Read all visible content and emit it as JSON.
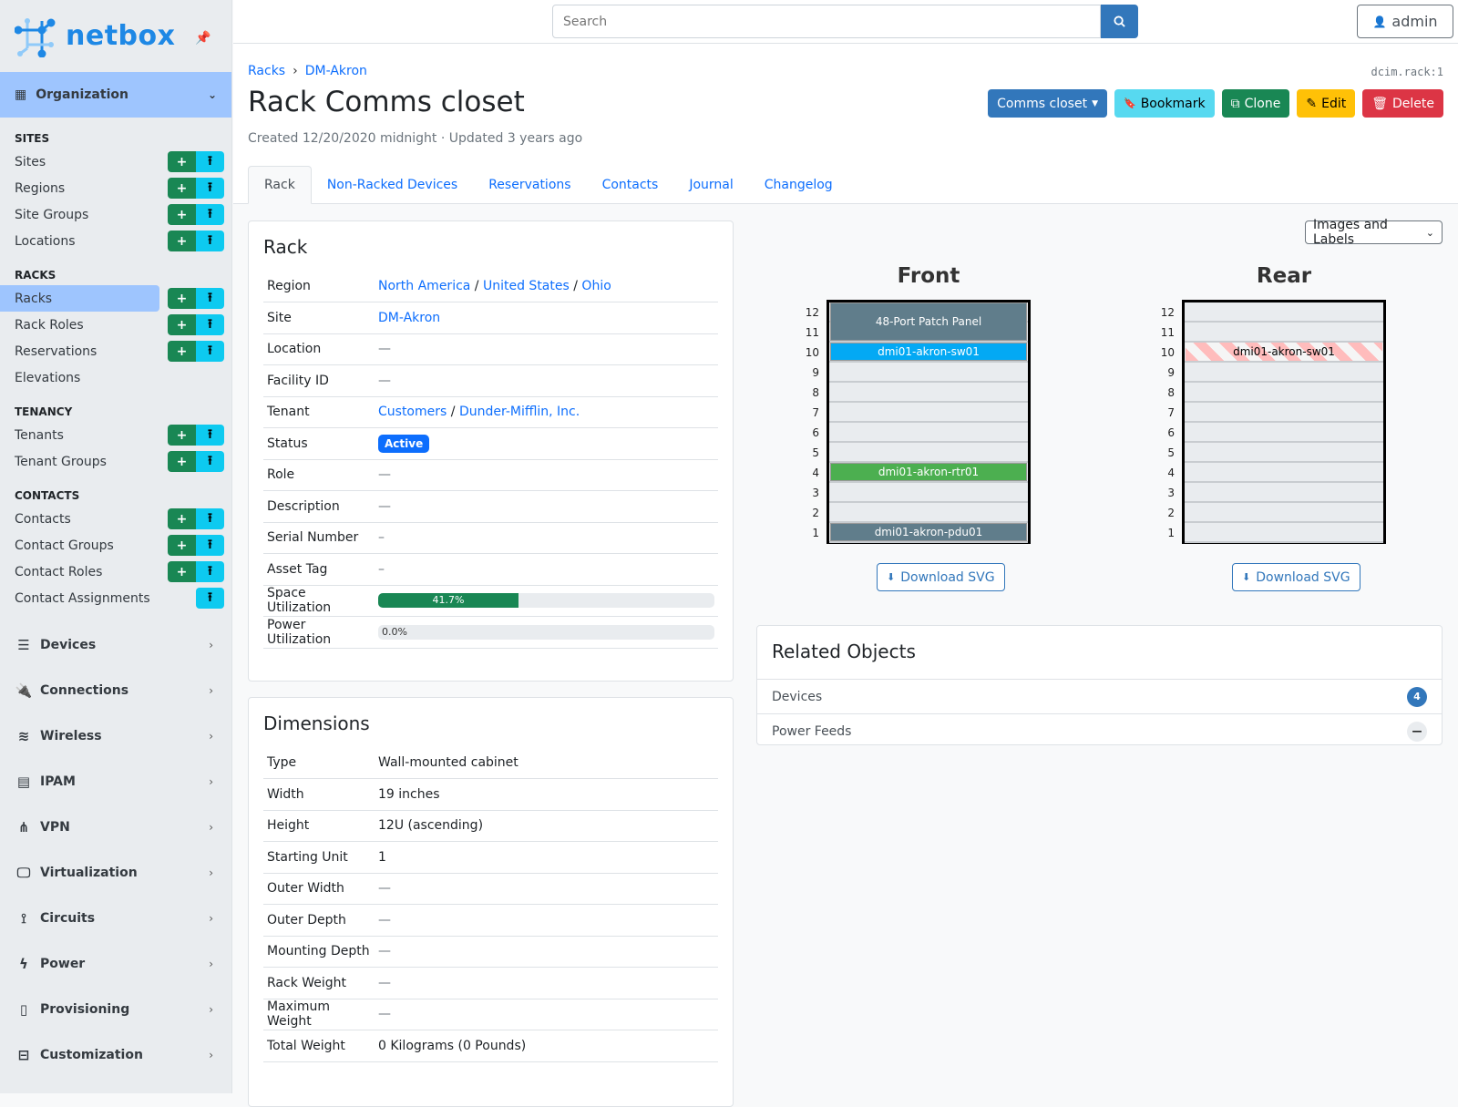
{
  "brand": {
    "name": "netbox",
    "accent": "#1e88e5"
  },
  "sidebar": {
    "group": "Organization",
    "sections": [
      {
        "title": "SITES",
        "items": [
          {
            "label": "Sites",
            "add": true,
            "import": true
          },
          {
            "label": "Regions",
            "add": true,
            "import": true
          },
          {
            "label": "Site Groups",
            "add": true,
            "import": true
          },
          {
            "label": "Locations",
            "add": true,
            "import": true
          }
        ]
      },
      {
        "title": "RACKS",
        "items": [
          {
            "label": "Racks",
            "add": true,
            "import": true,
            "active": true
          },
          {
            "label": "Rack Roles",
            "add": true,
            "import": true
          },
          {
            "label": "Reservations",
            "add": true,
            "import": true
          },
          {
            "label": "Elevations",
            "add": false,
            "import": false
          }
        ]
      },
      {
        "title": "TENANCY",
        "items": [
          {
            "label": "Tenants",
            "add": true,
            "import": true
          },
          {
            "label": "Tenant Groups",
            "add": true,
            "import": true
          }
        ]
      },
      {
        "title": "CONTACTS",
        "items": [
          {
            "label": "Contacts",
            "add": true,
            "import": true
          },
          {
            "label": "Contact Groups",
            "add": true,
            "import": true
          },
          {
            "label": "Contact Roles",
            "add": true,
            "import": true
          },
          {
            "label": "Contact Assignments",
            "add": false,
            "import": true
          }
        ]
      }
    ],
    "menus": [
      {
        "label": "Devices",
        "icon": "server-icon"
      },
      {
        "label": "Connections",
        "icon": "plug-icon"
      },
      {
        "label": "Wireless",
        "icon": "wifi-icon"
      },
      {
        "label": "IPAM",
        "icon": "ip-icon"
      },
      {
        "label": "VPN",
        "icon": "network-icon"
      },
      {
        "label": "Virtualization",
        "icon": "monitor-icon"
      },
      {
        "label": "Circuits",
        "icon": "circuit-icon"
      },
      {
        "label": "Power",
        "icon": "bolt-icon"
      },
      {
        "label": "Provisioning",
        "icon": "file-icon"
      },
      {
        "label": "Customization",
        "icon": "toolbox-icon"
      }
    ]
  },
  "topbar": {
    "search_placeholder": "Search",
    "user": "admin"
  },
  "header": {
    "breadcrumb": [
      "Racks",
      "DM-Akron"
    ],
    "object_id": "dcim.rack:1",
    "title": "Rack Comms closet",
    "meta": "Created 12/20/2020 midnight · Updated 3 years ago",
    "actions": {
      "rack_select": "Comms closet",
      "bookmark": "Bookmark",
      "clone": "Clone",
      "edit": "Edit",
      "delete": "Delete"
    },
    "tabs": [
      "Rack",
      "Non-Racked Devices",
      "Reservations",
      "Contacts",
      "Journal",
      "Changelog"
    ]
  },
  "rack_card": {
    "title": "Rack",
    "region": [
      "North America",
      "United States",
      "Ohio"
    ],
    "rows": [
      {
        "label": "Region"
      },
      {
        "label": "Site",
        "value": "DM-Akron",
        "link": true
      },
      {
        "label": "Location",
        "value": "—"
      },
      {
        "label": "Facility ID",
        "value": "—"
      },
      {
        "label": "Tenant"
      },
      {
        "label": "Status",
        "value": "Active"
      },
      {
        "label": "Role",
        "value": "—"
      },
      {
        "label": "Description",
        "value": "—"
      },
      {
        "label": "Serial Number",
        "value": "–"
      },
      {
        "label": "Asset Tag",
        "value": "–"
      },
      {
        "label": "Space Utilization",
        "value": "41.7%",
        "percent": 41.7
      },
      {
        "label": "Power Utilization",
        "value": "0.0%",
        "percent": 0
      }
    ],
    "tenant": [
      "Customers",
      "Dunder-Mifflin, Inc."
    ]
  },
  "dimensions": {
    "title": "Dimensions",
    "rows": [
      {
        "label": "Type",
        "value": "Wall-mounted cabinet"
      },
      {
        "label": "Width",
        "value": "19 inches"
      },
      {
        "label": "Height",
        "value": "12U (ascending)"
      },
      {
        "label": "Starting Unit",
        "value": "1"
      },
      {
        "label": "Outer Width",
        "value": "—"
      },
      {
        "label": "Outer Depth",
        "value": "—"
      },
      {
        "label": "Mounting Depth",
        "value": "—"
      },
      {
        "label": "Rack Weight",
        "value": "—"
      },
      {
        "label": "Maximum Weight",
        "value": "—"
      },
      {
        "label": "Total Weight",
        "value": "0 Kilograms (0 Pounds)"
      }
    ]
  },
  "elevation": {
    "view_select": "Images and Labels",
    "units": 12,
    "download": "Download SVG",
    "front": {
      "title": "Front",
      "devices": [
        {
          "name": "48-Port Patch Panel",
          "top": 12,
          "bottom": 11,
          "color": "#607d8b"
        },
        {
          "name": "dmi01-akron-sw01",
          "top": 10,
          "bottom": 10,
          "color": "#03a9f4"
        },
        {
          "name": "dmi01-akron-rtr01",
          "top": 4,
          "bottom": 4,
          "color": "#4caf50"
        },
        {
          "name": "dmi01-akron-pdu01",
          "top": 1,
          "bottom": 1,
          "color": "#607d8b"
        }
      ]
    },
    "rear": {
      "title": "Rear",
      "devices": [
        {
          "name": "dmi01-akron-sw01",
          "top": 10,
          "bottom": 10,
          "color": "striped"
        }
      ]
    }
  },
  "related": {
    "title": "Related Objects",
    "items": [
      {
        "label": "Devices",
        "count": "4"
      },
      {
        "label": "Power Feeds",
        "count": "—"
      }
    ]
  }
}
